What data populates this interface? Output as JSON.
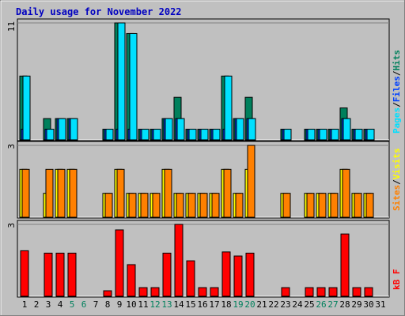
{
  "title": "Daily usage for November 2022",
  "legend_separator": "/",
  "chart_data": [
    {
      "type": "bar",
      "ylim": [
        0,
        11
      ],
      "yticks": [
        11
      ],
      "series": [
        {
          "name": "Hits",
          "color": "#00805c",
          "values": [
            6,
            0,
            2,
            2,
            2,
            0,
            0,
            1,
            11,
            10,
            1,
            1,
            2,
            4,
            1,
            1,
            1,
            6,
            2,
            4,
            0,
            0,
            1,
            0,
            1,
            1,
            1,
            3,
            1,
            1,
            0
          ]
        },
        {
          "name": "Files",
          "color": "#0040ff",
          "values": [
            1,
            0,
            1,
            2,
            2,
            0,
            0,
            1,
            1,
            1,
            1,
            1,
            2,
            2,
            1,
            1,
            1,
            1,
            2,
            2,
            0,
            0,
            1,
            0,
            1,
            1,
            1,
            2,
            1,
            1,
            0
          ]
        },
        {
          "name": "Pages",
          "color": "#00e0ff",
          "values": [
            6,
            0,
            1,
            2,
            2,
            0,
            0,
            1,
            11,
            10,
            1,
            1,
            2,
            2,
            1,
            1,
            1,
            6,
            2,
            2,
            0,
            0,
            1,
            0,
            1,
            1,
            1,
            2,
            1,
            1,
            0
          ]
        }
      ]
    },
    {
      "type": "bar",
      "ylim": [
        0,
        3
      ],
      "yticks": [
        3
      ],
      "series": [
        {
          "name": "Visits",
          "color": "#ffff00",
          "values": [
            2,
            0,
            1,
            2,
            2,
            0,
            0,
            1,
            2,
            1,
            1,
            1,
            2,
            1,
            1,
            1,
            1,
            2,
            1,
            2,
            0,
            0,
            1,
            0,
            1,
            1,
            1,
            2,
            1,
            1,
            0
          ]
        },
        {
          "name": "Sites",
          "color": "#ff8000",
          "values": [
            2,
            0,
            2,
            2,
            2,
            0,
            0,
            1,
            2,
            1,
            1,
            1,
            2,
            1,
            1,
            1,
            1,
            2,
            1,
            3,
            0,
            0,
            1,
            0,
            1,
            1,
            1,
            2,
            1,
            1,
            0
          ]
        }
      ]
    },
    {
      "type": "bar",
      "ylim": [
        0,
        3
      ],
      "yticks": [
        3
      ],
      "categories": [
        "1",
        "2",
        "3",
        "4",
        "5",
        "6",
        "7",
        "8",
        "9",
        "10",
        "11",
        "12",
        "13",
        "14",
        "15",
        "16",
        "17",
        "18",
        "19",
        "20",
        "21",
        "22",
        "23",
        "24",
        "25",
        "26",
        "27",
        "28",
        "29",
        "30",
        "31"
      ],
      "category_colors": [
        "#000000",
        "#000000",
        "#000000",
        "#000000",
        "#00805c",
        "#00805c",
        "#000000",
        "#000000",
        "#000000",
        "#000000",
        "#000000",
        "#00805c",
        "#00805c",
        "#000000",
        "#000000",
        "#000000",
        "#000000",
        "#000000",
        "#00805c",
        "#00805c",
        "#000000",
        "#000000",
        "#000000",
        "#000000",
        "#000000",
        "#00805c",
        "#00805c",
        "#000000",
        "#000000",
        "#000000",
        "#000000"
      ],
      "series": [
        {
          "name": "kB F",
          "color": "#ff0000",
          "values": [
            1.9,
            0,
            1.8,
            1.8,
            1.8,
            0,
            0,
            0.23,
            2.77,
            1.32,
            0.36,
            0.36,
            1.8,
            3.0,
            1.48,
            0.36,
            0.36,
            1.85,
            1.68,
            1.8,
            0,
            0,
            0.36,
            0,
            0.36,
            0.36,
            0.36,
            2.6,
            0.36,
            0.36,
            0
          ]
        }
      ]
    }
  ]
}
